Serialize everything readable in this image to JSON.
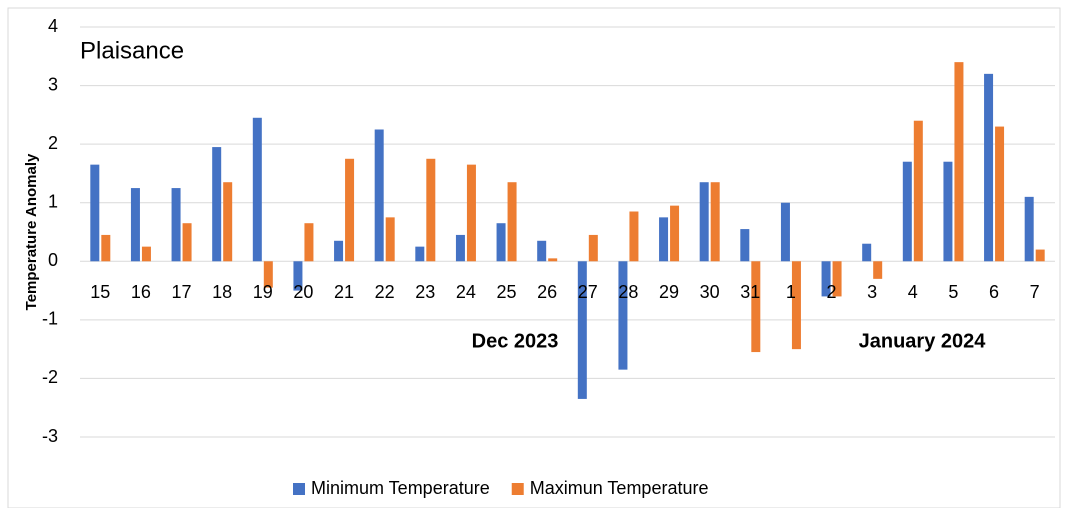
{
  "chart_data": {
    "type": "bar",
    "title": "Plaisance",
    "y_label": "Temperature  Anomaly",
    "annotations": [
      "Dec 2023",
      "January 2024"
    ],
    "categories": [
      "15",
      "16",
      "17",
      "18",
      "19",
      "20",
      "21",
      "22",
      "23",
      "24",
      "25",
      "26",
      "27",
      "28",
      "29",
      "30",
      "31",
      "1",
      "2",
      "3",
      "4",
      "5",
      "6",
      "7"
    ],
    "series": [
      {
        "name": "Minimum Temperature",
        "color": "#4472c4",
        "values": [
          1.65,
          1.25,
          1.25,
          1.95,
          2.45,
          -0.5,
          0.35,
          2.25,
          0.25,
          0.45,
          0.65,
          0.35,
          -2.35,
          -1.85,
          0.75,
          1.35,
          0.55,
          1.0,
          -0.6,
          0.3,
          1.7,
          1.7,
          3.2,
          1.1
        ]
      },
      {
        "name": "Maximun Temperature",
        "color": "#ed7d31",
        "values": [
          0.45,
          0.25,
          0.65,
          1.35,
          -0.45,
          0.65,
          1.75,
          0.75,
          1.75,
          1.65,
          1.35,
          0.05,
          0.45,
          0.85,
          0.95,
          1.35,
          -1.55,
          -1.5,
          -0.6,
          -0.3,
          2.4,
          3.4,
          2.3,
          0.2
        ]
      }
    ],
    "ylim": [
      -3,
      4
    ],
    "yticks": [
      -3,
      -2,
      -1,
      0,
      1,
      2,
      3,
      4
    ],
    "grid": true,
    "legend": "bottom"
  }
}
